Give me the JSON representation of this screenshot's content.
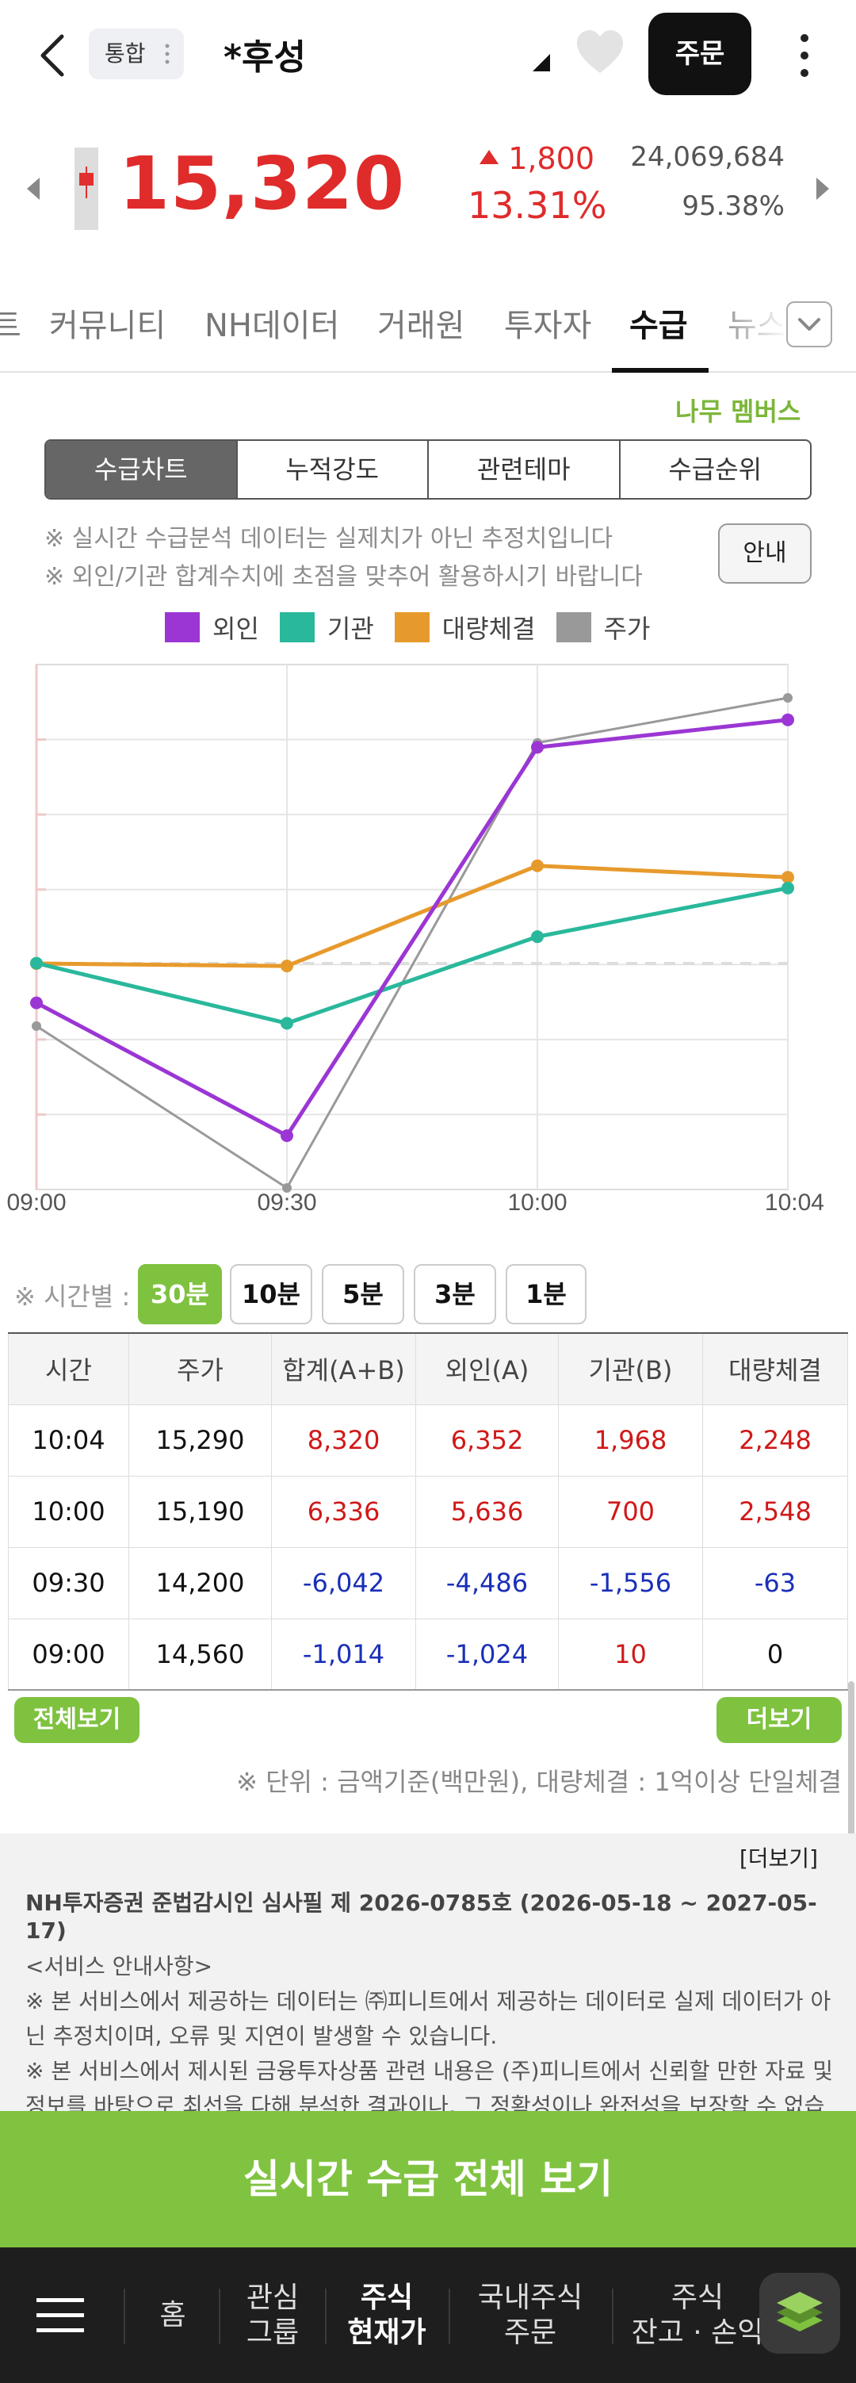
{
  "header": {
    "chip_label": "통합",
    "stock_name": "*후성",
    "order_label": "주문"
  },
  "price": {
    "current": "15,320",
    "change": "1,800",
    "percent": "13.31%",
    "volume": "24,069,684",
    "volume_ratio": "95.38%"
  },
  "tabs": [
    "트",
    "커뮤니티",
    "NH데이터",
    "거래원",
    "투자자",
    "수급",
    "뉴스"
  ],
  "active_tab": "수급",
  "members_label": "나무 멤버스",
  "segments": [
    "수급차트",
    "누적강도",
    "관련테마",
    "수급순위"
  ],
  "notice": [
    "※ 실시간 수급분석 데이터는 실제치가 아닌 추정치입니다",
    "※ 외인/기관 합계수치에 초점을 맞추어 활용하시기 바랍니다"
  ],
  "guide_label": "안내",
  "legend": [
    {
      "name": "외인",
      "color": "#9b36d4"
    },
    {
      "name": "기관",
      "color": "#2ab89c"
    },
    {
      "name": "대량체결",
      "color": "#e79a2c"
    },
    {
      "name": "주가",
      "color": "#999999"
    }
  ],
  "chart_data": {
    "type": "line",
    "categories": [
      "09:00",
      "09:30",
      "10:00",
      "10:04"
    ],
    "series": [
      {
        "name": "외인",
        "values": [
          -1024,
          -4486,
          5636,
          6352
        ]
      },
      {
        "name": "기관",
        "values": [
          10,
          -1556,
          700,
          1968
        ]
      },
      {
        "name": "대량체결",
        "values": [
          0,
          -63,
          2548,
          2248
        ]
      },
      {
        "name": "주가",
        "values": [
          14560,
          14200,
          15190,
          15290
        ]
      }
    ]
  },
  "period": {
    "label": "※ 시간별 :",
    "options": [
      "30분",
      "10분",
      "5분",
      "3분",
      "1분"
    ],
    "selected": "30분"
  },
  "table": {
    "headers": [
      "시간",
      "주가",
      "합계(A+B)",
      "외인(A)",
      "기관(B)",
      "대량체결"
    ],
    "rows": [
      [
        "10:04",
        "15,290",
        "8,320",
        "6,352",
        "1,968",
        "2,248"
      ],
      [
        "10:00",
        "15,190",
        "6,336",
        "5,636",
        "700",
        "2,548"
      ],
      [
        "09:30",
        "14,200",
        "-6,042",
        "-4,486",
        "-1,556",
        "-63"
      ],
      [
        "09:00",
        "14,560",
        "-1,014",
        "-1,024",
        "10",
        "0"
      ]
    ]
  },
  "view_all_label": "전체보기",
  "more_label": "더보기",
  "unit_note": "※ 단위 : 금액기준(백만원), 대량체결 : 1억이상 단일체결",
  "info": {
    "more": "[더보기]",
    "cert": "NH투자증권 준법감시인 심사필 제 2026-0785호 (2026-05-18 ~ 2027-05-17)",
    "title": "<서비스 안내사항>",
    "lines": [
      "※ 본 서비스에서 제공하는 데이터는 ㈜피니트에서 제공하는 데이터로 실제 데이터가 아닌 추정치이며, 오류 및 지연이 발생할 수 있습니다.",
      "※ 본 서비스에서 제시된 금융투자상품 관련 내용은 (주)피니트에서 신뢰할 만한 자료 및 정보를 바탕으로 최선을 다해 분석한 결과이나, 그 정확성이나 완전성을 보장할 수 없습"
    ]
  },
  "big_button": "실시간 수급 전체 보기",
  "bottom_nav": [
    {
      "label": "홈"
    },
    {
      "label": "관심\n그룹"
    },
    {
      "label": "주식\n현재가"
    },
    {
      "label": "국내주식\n주문"
    },
    {
      "label": "주식\n잔고 · 손익"
    }
  ]
}
